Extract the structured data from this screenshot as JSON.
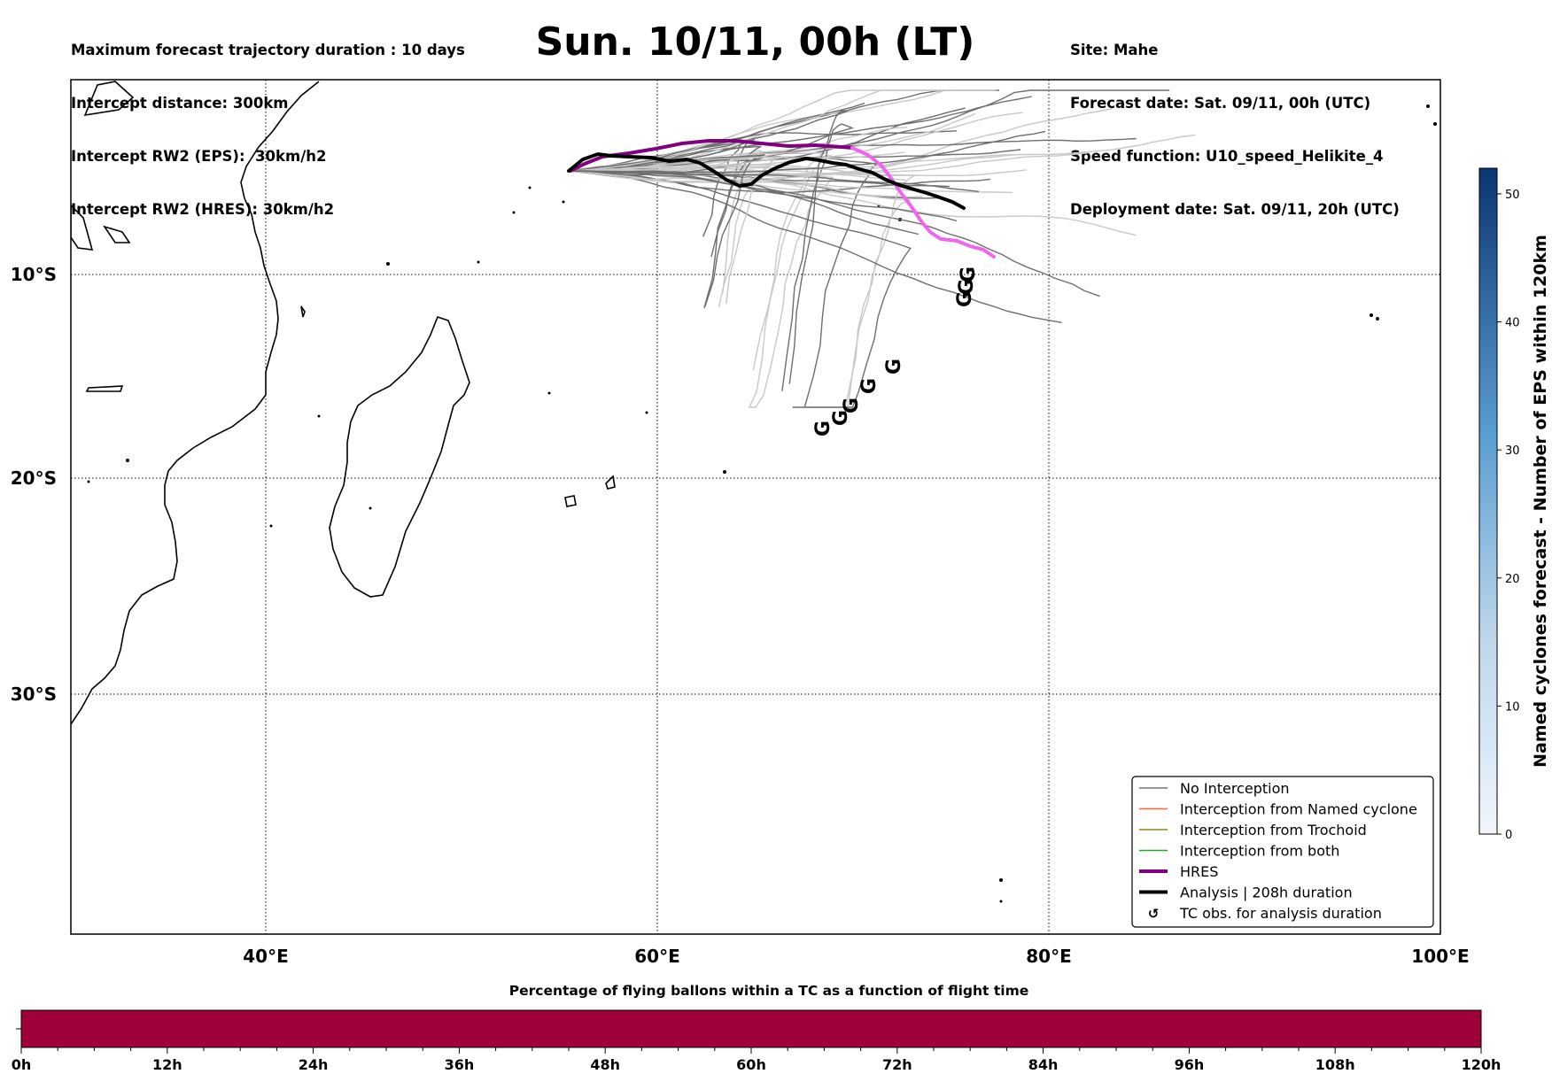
{
  "header": {
    "left_lines": [
      "Maximum forecast trajectory duration : 10 days",
      "Intercept distance: 300km",
      "Intercept RW2 (EPS):  30km/h2",
      "Intercept RW2 (HRES): 30km/h2"
    ],
    "right_lines": [
      "Site: Mahe",
      "Forecast date: Sat. 09/11, 00h (UTC)",
      "Speed function: U10_speed_Helikite_4",
      "Deployment date: Sat. 09/11, 20h (UTC)"
    ],
    "title": "Sun. 10/11, 00h (LT)"
  },
  "map": {
    "lon_ticks": [
      "40°E",
      "60°E",
      "80°E",
      "100°E"
    ],
    "lat_ticks": [
      "10°S",
      "20°S",
      "30°S"
    ],
    "lon_range": [
      30,
      100
    ],
    "lat_range": [
      0,
      -44
    ]
  },
  "legend": {
    "items": [
      {
        "label": "No Interception",
        "color": "#777777",
        "style": "thin-line"
      },
      {
        "label": "Interception from Named cyclone",
        "color": "#ff6633",
        "style": "thin-line"
      },
      {
        "label": "Interception from Trochoid",
        "color": "#8a8a1a",
        "style": "thin-line"
      },
      {
        "label": "Interception from both",
        "color": "#22aa22",
        "style": "thin-line"
      },
      {
        "label": "HRES",
        "color": "#800080",
        "style": "thick-line"
      },
      {
        "label": "Analysis | 208h duration",
        "color": "#000000",
        "style": "thick-line"
      },
      {
        "label": "TC obs. for analysis duration",
        "color": "#000000",
        "style": "cyclone-symbol"
      }
    ]
  },
  "colorbar": {
    "label": "Named cyclones forecast - Number of EPS within 120km",
    "ticks": [
      "0",
      "10",
      "20",
      "30",
      "40",
      "50"
    ],
    "range": [
      0,
      52
    ],
    "color_low": "#f0f5fc",
    "color_high": "#0a3570"
  },
  "timebar": {
    "title": "Percentage of flying ballons within a TC as a function of flight time",
    "ticks": [
      "0h",
      "12h",
      "24h",
      "36h",
      "48h",
      "60h",
      "72h",
      "84h",
      "96h",
      "108h",
      "120h"
    ],
    "fill_color": "#9e003a"
  },
  "tc_symbol": "G"
}
